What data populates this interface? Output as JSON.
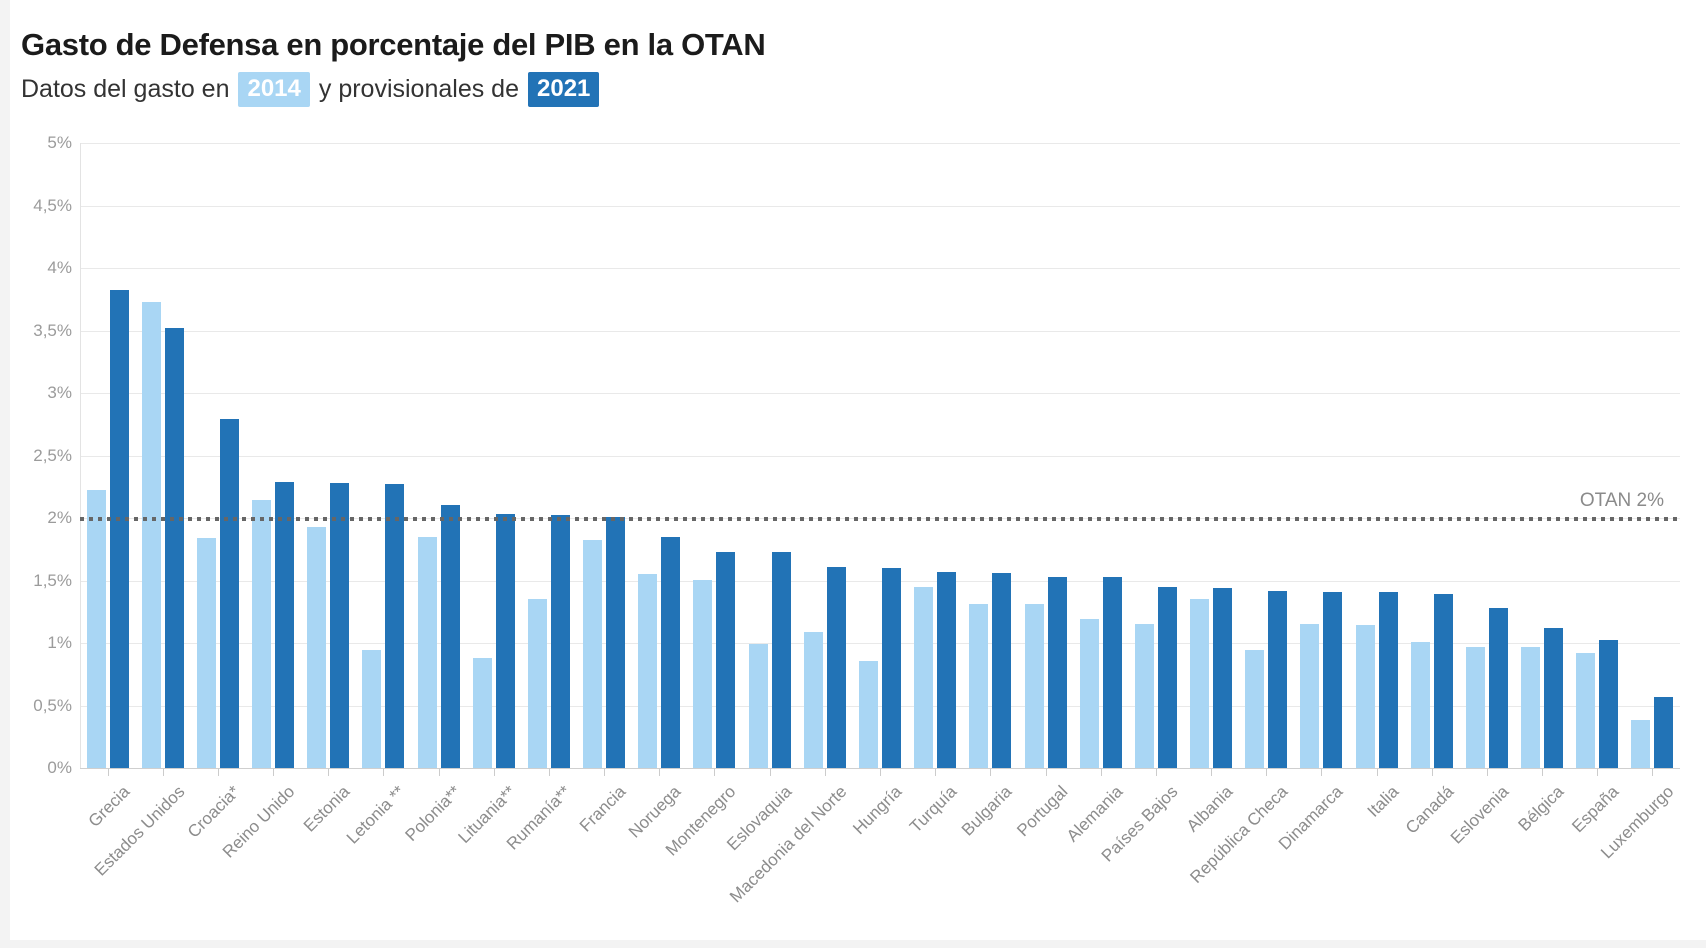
{
  "header": {
    "title": "Gasto de Defensa en porcentaje del PIB en la OTAN",
    "subtitle_prefix": "Datos del gasto en",
    "year_2014": "2014",
    "subtitle_middle": "y provisionales de",
    "year_2021": "2021"
  },
  "colors": {
    "series_2014": "#a9d6f4",
    "series_2021": "#2273b6",
    "threshold_dots": "#666666"
  },
  "chart_data": {
    "type": "bar",
    "title": "Gasto de Defensa en porcentaje del PIB en la OTAN",
    "subtitle": "Datos del gasto en 2014 y provisionales de 2021",
    "categories": [
      "Grecia",
      "Estados Unidos",
      "Croacia*",
      "Reino Unido",
      "Estonia",
      "Letonia **",
      "Polonia**",
      "Lituania**",
      "Rumanía**",
      "Francia",
      "Noruega",
      "Montenegro",
      "Eslovaquia",
      "Macedonia del Norte",
      "Hungría",
      "Turquía",
      "Bulgaria",
      "Portugal",
      "Alemania",
      "Países Bajos",
      "Albania",
      "República Checa",
      "Dinamarca",
      "Italia",
      "Canadá",
      "Eslovenia",
      "Bélgica",
      "España",
      "Luxemburgo"
    ],
    "series": [
      {
        "name": "2014",
        "color": "#a9d6f4",
        "values": [
          2.22,
          3.73,
          1.84,
          2.14,
          1.93,
          0.94,
          1.85,
          0.88,
          1.35,
          1.82,
          1.55,
          1.5,
          0.99,
          1.09,
          0.86,
          1.45,
          1.31,
          1.31,
          1.19,
          1.15,
          1.35,
          0.94,
          1.15,
          1.14,
          1.01,
          0.97,
          0.97,
          0.92,
          0.38
        ]
      },
      {
        "name": "2021",
        "color": "#2273b6",
        "values": [
          3.82,
          3.52,
          2.79,
          2.29,
          2.28,
          2.27,
          2.1,
          2.03,
          2.02,
          2.01,
          1.85,
          1.73,
          1.73,
          1.61,
          1.6,
          1.57,
          1.56,
          1.53,
          1.53,
          1.45,
          1.44,
          1.42,
          1.41,
          1.41,
          1.39,
          1.28,
          1.12,
          1.02,
          0.57
        ]
      }
    ],
    "xlabel": "",
    "ylabel": "",
    "ylim": [
      0,
      5
    ],
    "y_tick_step": 0.5,
    "y_tick_labels": [
      "5%",
      "4,5%",
      "4%",
      "3,5%",
      "3%",
      "2,5%",
      "2%",
      "1,5%",
      "1%",
      "0,5%",
      "0%"
    ],
    "grid": "horizontal",
    "legend_position": "embedded-in-subtitle",
    "threshold": {
      "value": 2,
      "label": "OTAN 2%"
    }
  }
}
